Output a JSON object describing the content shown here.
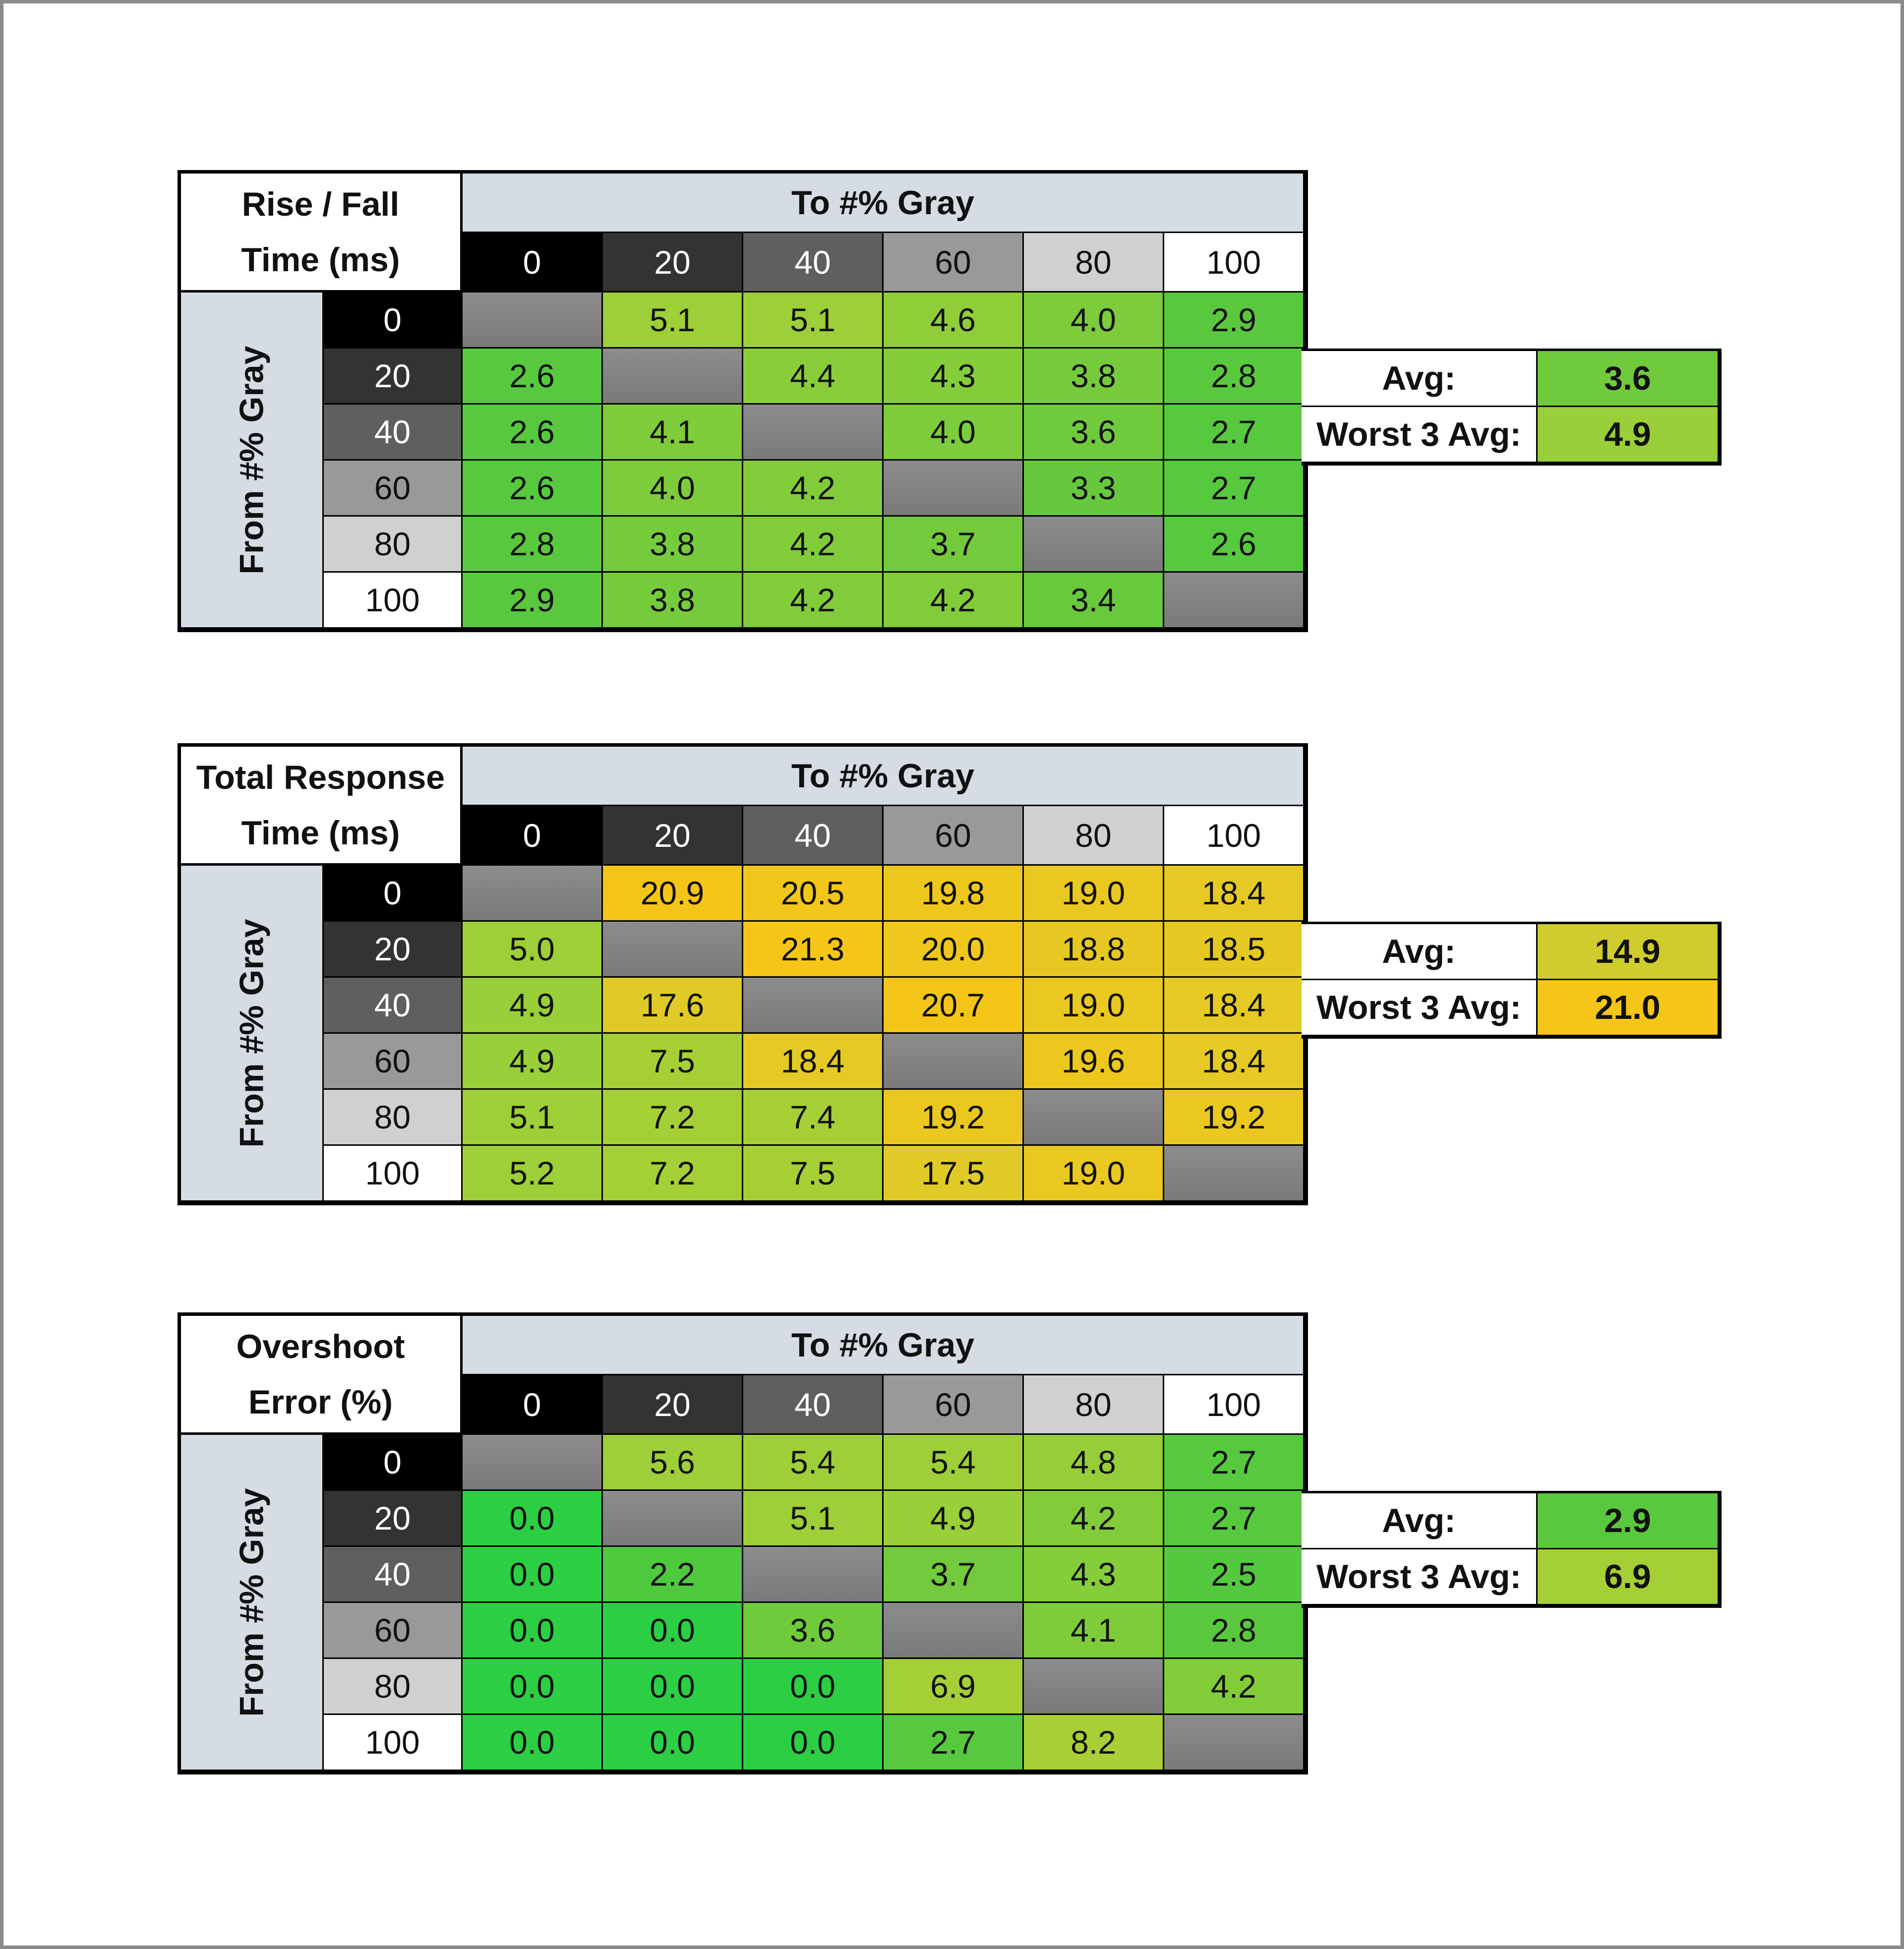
{
  "gray_levels": [
    "0",
    "20",
    "40",
    "60",
    "80",
    "100"
  ],
  "header_colors": [
    "#000000",
    "#333333",
    "#5f5f5f",
    "#999999",
    "#d0d0d0",
    "#ffffff"
  ],
  "header_text_colors": [
    "#ffffff",
    "#ffffff",
    "#ffffff",
    "#111111",
    "#111111",
    "#111111"
  ],
  "diag_color": "#808080",
  "title_bg": "#d6dce4",
  "color_scale": [
    [
      0,
      "#2ccf43"
    ],
    [
      3,
      "#5cc83e"
    ],
    [
      5,
      "#9ccf38"
    ],
    [
      8,
      "#a8cf36"
    ],
    [
      17,
      "#dccb2a"
    ],
    [
      21,
      "#f5c518"
    ]
  ],
  "chart_data": [
    {
      "type": "heatmap",
      "title_line1": "Rise / Fall",
      "title_line2": "Time (ms)",
      "col_header": "To #% Gray",
      "row_header": "From #% Gray",
      "categories": [
        "0",
        "20",
        "40",
        "60",
        "80",
        "100"
      ],
      "values": [
        [
          null,
          5.1,
          5.1,
          4.6,
          4.0,
          2.9
        ],
        [
          2.6,
          null,
          4.4,
          4.3,
          3.8,
          2.8
        ],
        [
          2.6,
          4.1,
          null,
          4.0,
          3.6,
          2.7
        ],
        [
          2.6,
          4.0,
          4.2,
          null,
          3.3,
          2.7
        ],
        [
          2.8,
          3.8,
          4.2,
          3.7,
          null,
          2.6
        ],
        [
          2.9,
          3.8,
          4.2,
          4.2,
          3.4,
          null
        ]
      ],
      "avg_label": "Avg:",
      "avg": "3.6",
      "worst_label": "Worst 3 Avg:",
      "worst": "4.9"
    },
    {
      "type": "heatmap",
      "title_line1": "Total Response",
      "title_line2": "Time (ms)",
      "col_header": "To #% Gray",
      "row_header": "From #% Gray",
      "categories": [
        "0",
        "20",
        "40",
        "60",
        "80",
        "100"
      ],
      "values": [
        [
          null,
          20.9,
          20.5,
          19.8,
          19.0,
          18.4
        ],
        [
          5.0,
          null,
          21.3,
          20.0,
          18.8,
          18.5
        ],
        [
          4.9,
          17.6,
          null,
          20.7,
          19.0,
          18.4
        ],
        [
          4.9,
          7.5,
          18.4,
          null,
          19.6,
          18.4
        ],
        [
          5.1,
          7.2,
          7.4,
          19.2,
          null,
          19.2
        ],
        [
          5.2,
          7.2,
          7.5,
          17.5,
          19.0,
          null
        ]
      ],
      "avg_label": "Avg:",
      "avg": "14.9",
      "worst_label": "Worst 3 Avg:",
      "worst": "21.0"
    },
    {
      "type": "heatmap",
      "title_line1": "Overshoot",
      "title_line2": "Error (%)",
      "col_header": "To #% Gray",
      "row_header": "From #% Gray",
      "categories": [
        "0",
        "20",
        "40",
        "60",
        "80",
        "100"
      ],
      "values": [
        [
          null,
          5.6,
          5.4,
          5.4,
          4.8,
          2.7
        ],
        [
          0.0,
          null,
          5.1,
          4.9,
          4.2,
          2.7
        ],
        [
          0.0,
          2.2,
          null,
          3.7,
          4.3,
          2.5
        ],
        [
          0.0,
          0.0,
          3.6,
          null,
          4.1,
          2.8
        ],
        [
          0.0,
          0.0,
          0.0,
          6.9,
          null,
          4.2
        ],
        [
          0.0,
          0.0,
          0.0,
          2.7,
          8.2,
          null
        ]
      ],
      "avg_label": "Avg:",
      "avg": "2.9",
      "worst_label": "Worst 3 Avg:",
      "worst": "6.9"
    }
  ]
}
